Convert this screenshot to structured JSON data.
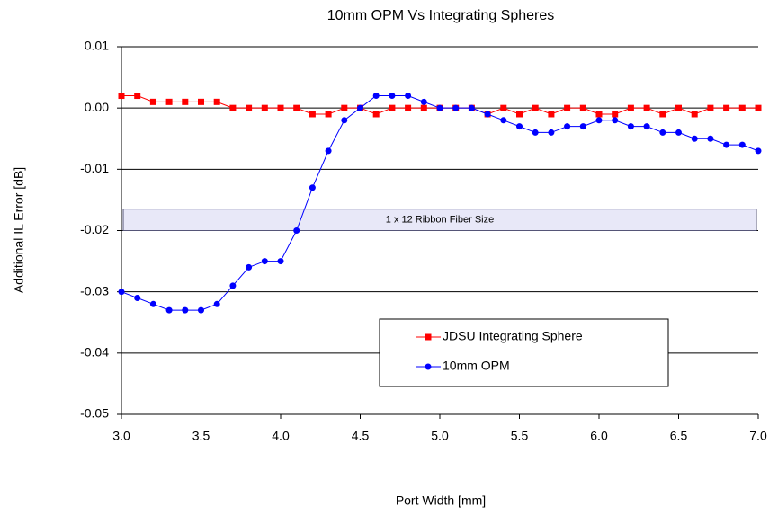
{
  "chart_data": {
    "type": "line",
    "title": "10mm OPM Vs Integrating  Spheres",
    "xlabel": "Port Width [mm]",
    "ylabel": "Additional IL Error [dB]",
    "x": [
      3,
      3.1,
      3.2,
      3.3,
      3.4,
      3.5,
      3.6,
      3.7,
      3.8,
      3.9,
      4,
      4.1,
      4.2,
      4.3,
      4.4,
      4.5,
      4.6,
      4.7,
      4.8,
      4.9,
      5,
      5.1,
      5.2,
      5.3,
      5.4,
      5.5,
      5.6,
      5.7,
      5.8,
      5.9,
      6,
      6.1,
      6.2,
      6.3,
      6.4,
      6.5,
      6.6,
      6.7,
      6.8,
      6.9,
      7
    ],
    "series": [
      {
        "name": "JDSU Integrating Sphere",
        "color": "#ff0000",
        "marker": "square",
        "values": [
          0.002,
          0.002,
          0.001,
          0.001,
          0.001,
          0.001,
          0.001,
          0,
          0,
          0,
          0,
          0,
          -0.001,
          -0.001,
          0,
          0,
          -0.001,
          0,
          0,
          0,
          0,
          0,
          0,
          -0.001,
          0,
          -0.001,
          0,
          -0.001,
          0,
          0,
          -0.001,
          -0.001,
          0,
          0,
          -0.001,
          0,
          -0.001,
          0,
          0,
          0,
          0
        ]
      },
      {
        "name": "10mm OPM",
        "color": "#0000ff",
        "marker": "circle",
        "values": [
          -0.03,
          -0.031,
          -0.032,
          -0.033,
          -0.033,
          -0.033,
          -0.032,
          -0.029,
          -0.026,
          -0.025,
          -0.025,
          -0.02,
          -0.013,
          -0.007,
          -0.002,
          0,
          0.002,
          0.002,
          0.002,
          0.001,
          0,
          0,
          0,
          -0.001,
          -0.002,
          -0.003,
          -0.004,
          -0.004,
          -0.003,
          -0.003,
          -0.002,
          -0.002,
          -0.003,
          -0.003,
          -0.004,
          -0.004,
          -0.005,
          -0.005,
          -0.006,
          -0.006,
          -0.007
        ]
      }
    ],
    "annotations": [
      {
        "text": "1 x 12 Ribbon Fiber Size",
        "y": [
          -0.0165,
          -0.02
        ]
      }
    ],
    "xlim": [
      3,
      7
    ],
    "xticks": [
      {
        "value": 3,
        "label": "3.0"
      },
      3.5,
      {
        "value": 4,
        "label": "4.0"
      },
      4.5,
      {
        "value": 5,
        "label": "5.0"
      },
      5.5,
      {
        "value": 6,
        "label": "6.0"
      },
      6.5,
      {
        "value": 7,
        "label": "7.0"
      }
    ],
    "ylim": [
      -0.05,
      0.01
    ],
    "yticks": [
      -0.05,
      -0.04,
      -0.03,
      -0.02,
      -0.01,
      {
        "value": 0,
        "label": "0.00"
      },
      0.01
    ],
    "grid": true,
    "legend": "lower center"
  }
}
